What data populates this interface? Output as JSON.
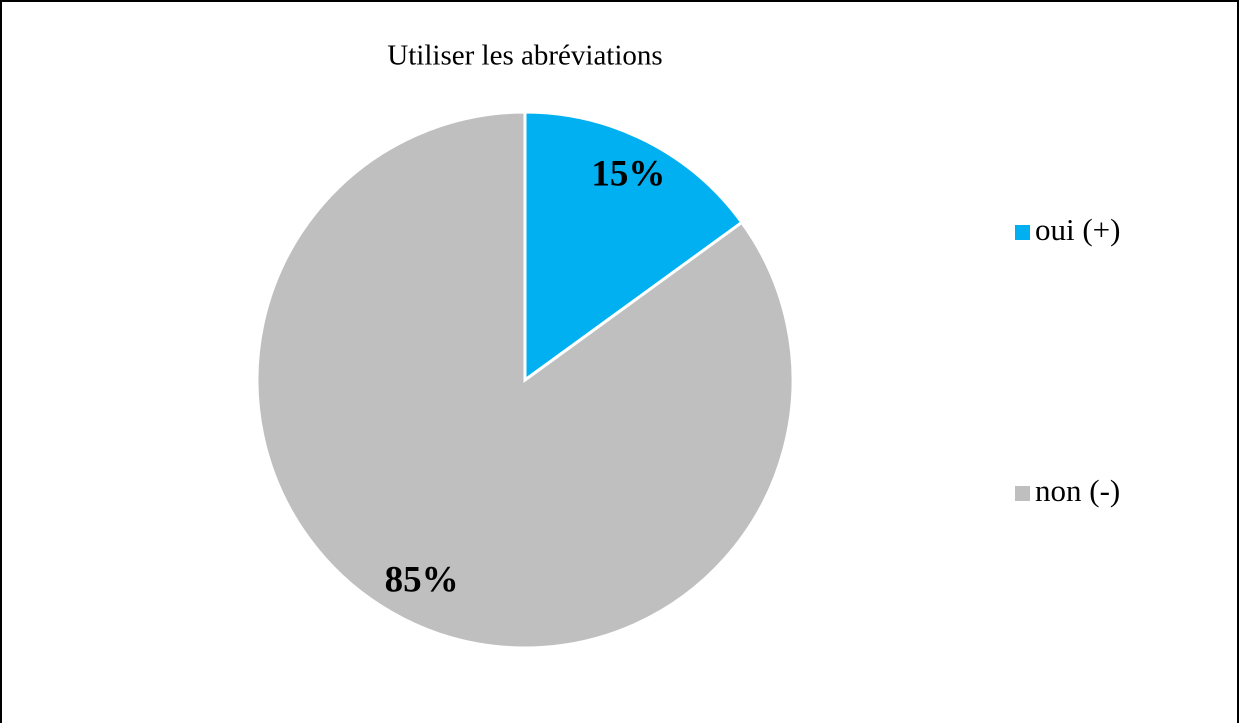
{
  "chart_data": {
    "type": "pie",
    "title": "Utiliser les abréviations",
    "categories": [
      "oui (+)",
      "non (-)"
    ],
    "values": [
      15,
      85
    ],
    "value_labels": [
      "15%",
      "85%"
    ],
    "colors": [
      "#00b0f0",
      "#bfbfbf"
    ],
    "legend": "right"
  }
}
